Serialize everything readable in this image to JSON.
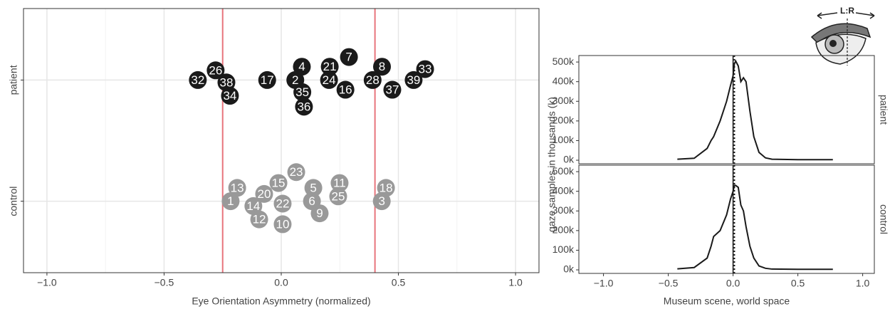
{
  "icon_label": "L:R",
  "chart_data": [
    {
      "type": "scatter",
      "x_label": "Eye Orientation Asymmetry (normalized)",
      "xlim": [
        -1.1,
        1.1
      ],
      "xticks": [
        {
          "value": -1,
          "label": "−1.0"
        },
        {
          "value": -0.5,
          "label": "−0.5"
        },
        {
          "value": 0,
          "label": "0.0"
        },
        {
          "value": 0.5,
          "label": "0.5"
        },
        {
          "value": 1,
          "label": "1.0"
        }
      ],
      "minor_xticks": [
        -0.75,
        -0.25,
        0.25,
        0.75
      ],
      "ylim": [
        0.41,
        2.59
      ],
      "yticks": [
        {
          "value": 1,
          "label": "control"
        },
        {
          "value": 2,
          "label": "patient"
        }
      ],
      "grid": true,
      "vlines": [
        -0.25,
        0.4
      ],
      "vline_color": "#e8747c",
      "series": [
        {
          "color": "#1a1a1a",
          "labels": [
            26,
            32,
            38,
            34,
            17,
            4,
            2,
            35,
            36,
            21,
            24,
            7,
            16,
            8,
            28,
            37,
            33,
            39
          ],
          "x": [
            -0.28,
            -0.356,
            -0.234,
            -0.219,
            -0.06,
            0.088,
            0.06,
            0.09,
            0.097,
            0.207,
            0.204,
            0.289,
            0.274,
            0.43,
            0.39,
            0.474,
            0.614,
            0.565
          ],
          "y": [
            2.08,
            2.0,
            1.98,
            1.87,
            2.0,
            2.11,
            2.0,
            1.9,
            1.78,
            2.11,
            2.0,
            2.19,
            1.92,
            2.11,
            2.0,
            1.92,
            2.09,
            2.0
          ]
        },
        {
          "color": "#999999",
          "labels": [
            13,
            1,
            20,
            15,
            23,
            14,
            12,
            22,
            10,
            5,
            6,
            9,
            11,
            25,
            18,
            3
          ],
          "x": [
            -0.188,
            -0.216,
            -0.073,
            -0.012,
            0.064,
            -0.119,
            -0.094,
            0.006,
            0.006,
            0.137,
            0.131,
            0.164,
            0.249,
            0.243,
            0.447,
            0.429
          ],
          "y": [
            1.11,
            1.0,
            1.06,
            1.15,
            1.24,
            0.96,
            0.85,
            0.98,
            0.81,
            1.11,
            1.0,
            0.9,
            1.15,
            1.04,
            1.11,
            1.0
          ]
        }
      ]
    },
    {
      "type": "density",
      "x_label": "Museum scene, world space",
      "y_label": "gaze samples in thousands (k)",
      "xlim": [
        -1.19,
        1.09
      ],
      "xticks": [
        {
          "value": -1,
          "label": "−1.0"
        },
        {
          "value": -0.5,
          "label": "−0.5"
        },
        {
          "value": 0,
          "label": "0.0"
        },
        {
          "value": 0.5,
          "label": "0.5"
        },
        {
          "value": 1,
          "label": "1.0"
        }
      ],
      "ylim": [
        -18,
        533
      ],
      "yticks": [
        {
          "value": 0,
          "label": "0k"
        },
        {
          "value": 100,
          "label": "100k"
        },
        {
          "value": 200,
          "label": "200k"
        },
        {
          "value": 300,
          "label": "300k"
        },
        {
          "value": 400,
          "label": "400k"
        },
        {
          "value": 500,
          "label": "500k"
        }
      ],
      "color": "#1a1a1a",
      "vline": 0,
      "dotted_vline": 0.01,
      "x": [
        -0.43,
        -0.3,
        -0.2,
        -0.17,
        -0.15,
        -0.1,
        -0.05,
        -0.02,
        0,
        0.01,
        0.02,
        0.04,
        0.06,
        0.08,
        0.1,
        0.13,
        0.16,
        0.2,
        0.25,
        0.3,
        0.5,
        0.77
      ],
      "facets": [
        {
          "name": "patient",
          "values": [
            5,
            10,
            60,
            100,
            120,
            200,
            300,
            380,
            430,
            490,
            505,
            480,
            400,
            420,
            400,
            250,
            120,
            40,
            12,
            5,
            3,
            3
          ]
        },
        {
          "name": "control",
          "values": [
            5,
            12,
            60,
            120,
            170,
            200,
            280,
            360,
            400,
            430,
            430,
            420,
            330,
            300,
            220,
            120,
            60,
            20,
            8,
            4,
            3,
            3
          ]
        }
      ]
    }
  ]
}
